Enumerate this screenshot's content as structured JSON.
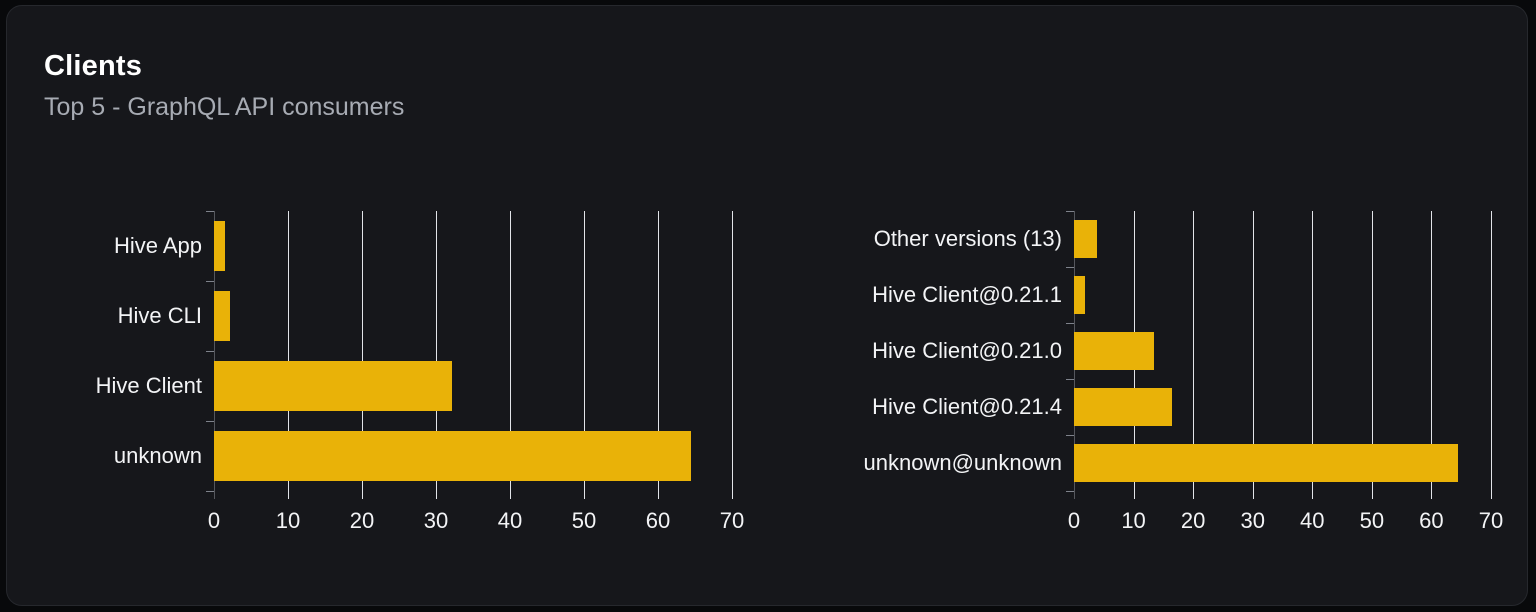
{
  "card": {
    "title": "Clients",
    "subtitle": "Top 5 - GraphQL API consumers"
  },
  "colors": {
    "page_background": "#08090b",
    "card_background": "#16171b",
    "card_border": "#26282d",
    "title": "#ffffff",
    "subtitle": "#a7abb3",
    "bar": "#e9b208",
    "gridline": "#e2e4e9",
    "axis_line": "#55575d",
    "axis_tick": "#7e828b",
    "axis_label": "#f3f4f6"
  },
  "chart_data": [
    {
      "type": "bar",
      "orientation": "horizontal",
      "title": "",
      "xlabel": "",
      "ylabel": "",
      "categories": [
        "Hive App",
        "Hive CLI",
        "Hive Client",
        "unknown"
      ],
      "values": [
        1.5,
        2.1,
        32.1,
        64.4
      ],
      "xlim": [
        0,
        70
      ],
      "xticks": [
        0,
        10,
        20,
        30,
        40,
        50,
        60,
        70
      ],
      "grid": true,
      "legend": false
    },
    {
      "type": "bar",
      "orientation": "horizontal",
      "title": "",
      "xlabel": "",
      "ylabel": "",
      "categories": [
        "Other versions (13)",
        "Hive Client@0.21.1",
        "Hive Client@0.21.0",
        "Hive Client@0.21.4",
        "unknown@unknown"
      ],
      "values": [
        3.9,
        1.9,
        13.5,
        16.4,
        64.5
      ],
      "xlim": [
        0,
        70
      ],
      "xticks": [
        0,
        10,
        20,
        30,
        40,
        50,
        60,
        70
      ],
      "grid": true,
      "legend": false
    }
  ]
}
